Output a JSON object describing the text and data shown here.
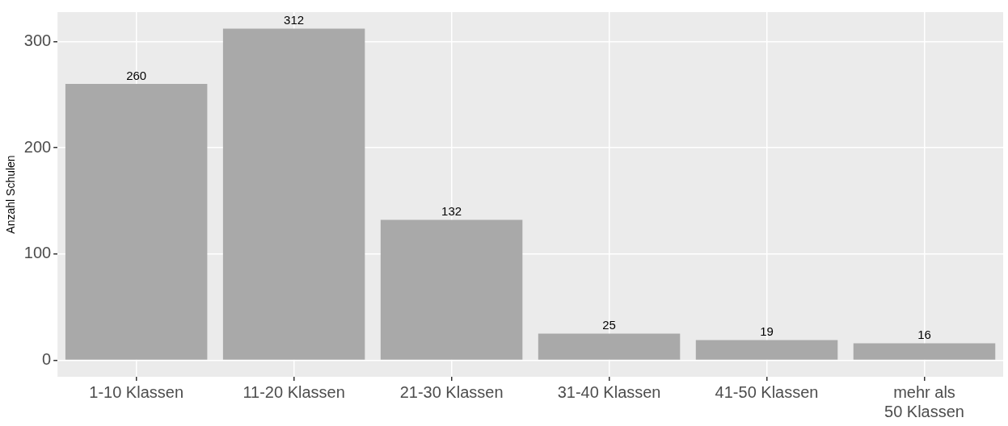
{
  "chart_data": {
    "type": "bar",
    "ylabel": "Anzahl Schulen",
    "categories": [
      "1-10 Klassen",
      "11-20 Klassen",
      "21-30 Klassen",
      "31-40 Klassen",
      "41-50 Klassen",
      "mehr als\n50 Klassen"
    ],
    "values": [
      260,
      312,
      132,
      25,
      19,
      16
    ],
    "color": "#a9a9a9",
    "ylim": [
      -15.6,
      327.6
    ],
    "yticks": [
      0,
      100,
      200,
      300
    ],
    "grid": true,
    "data_labels": true
  }
}
